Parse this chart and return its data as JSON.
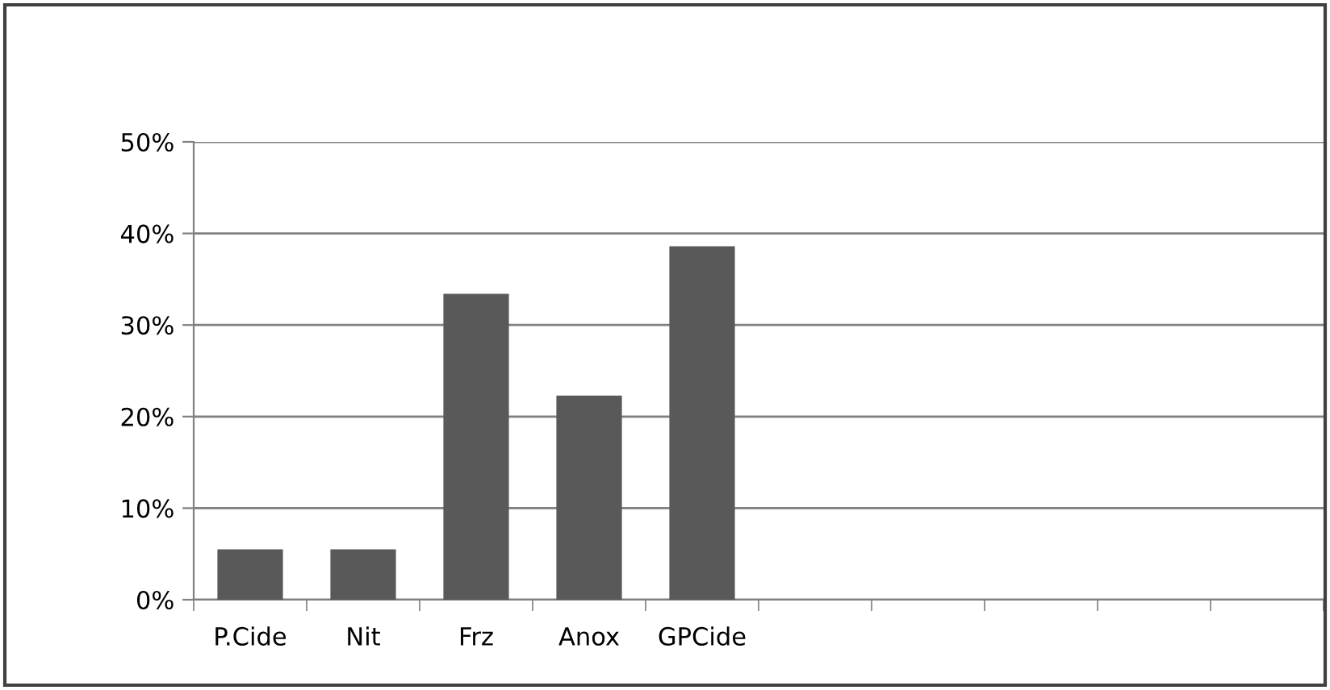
{
  "chart_data": {
    "type": "bar",
    "categories": [
      "P.Cide",
      "Nit",
      "Frz",
      "Anox",
      "GPCide",
      null,
      null,
      null,
      null,
      null
    ],
    "values": [
      5.5,
      5.5,
      33.4,
      22.3,
      38.6,
      null,
      null,
      null,
      null,
      null
    ],
    "color": "#595959",
    "ylim": [
      0,
      50
    ],
    "yticks": [
      {
        "value": 0,
        "label": "0%"
      },
      {
        "value": 10,
        "label": "10%"
      },
      {
        "value": 20,
        "label": "20%"
      },
      {
        "value": 30,
        "label": "30%"
      },
      {
        "value": 40,
        "label": "40%"
      },
      {
        "value": 50,
        "label": "50%"
      }
    ],
    "grid": "y",
    "legend": false
  }
}
